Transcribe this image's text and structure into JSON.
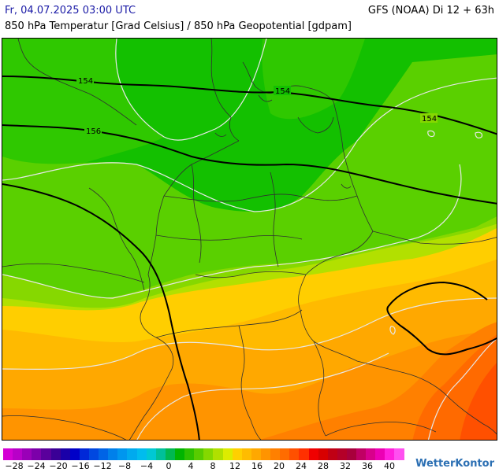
{
  "header": {
    "date": "Fr, 04.07.2025 03:00 UTC",
    "model": "GFS (NOAA) Di 12 + 63h",
    "parameter": "850 hPa Temperatur [Grad Celsius] / 850 hPa Geopotential [gdpam]"
  },
  "isolines": {
    "label_154_a": "154",
    "label_154_b": "154",
    "label_154_c": "154",
    "label_156": "156"
  },
  "legend": {
    "ticks": [
      "−28",
      "−24",
      "−20",
      "−16",
      "−12",
      "−8",
      "−4",
      "0",
      "4",
      "8",
      "12",
      "16",
      "20",
      "24",
      "28",
      "32",
      "36",
      "40"
    ],
    "colors": [
      "#d400d4",
      "#b800c8",
      "#9a00b8",
      "#7c00aa",
      "#5a009c",
      "#3a0096",
      "#1a00a8",
      "#0000c8",
      "#0028d8",
      "#0048e0",
      "#0064e6",
      "#0080ea",
      "#0096ee",
      "#00aaee",
      "#00bcee",
      "#00c8d4",
      "#00c09a",
      "#00b850",
      "#00b400",
      "#2cc000",
      "#58cc00",
      "#84d800",
      "#b0e000",
      "#dcec00",
      "#ffd000",
      "#ffbc00",
      "#ffa800",
      "#ff9400",
      "#ff8000",
      "#ff6c00",
      "#ff5000",
      "#ff3000",
      "#f00000",
      "#d80000",
      "#c00014",
      "#b40028",
      "#a8003c",
      "#c00064",
      "#d8008c",
      "#ec00b4",
      "#ff20dc",
      "#ff50f0"
    ]
  },
  "logo": {
    "text": "WetterKontor"
  }
}
